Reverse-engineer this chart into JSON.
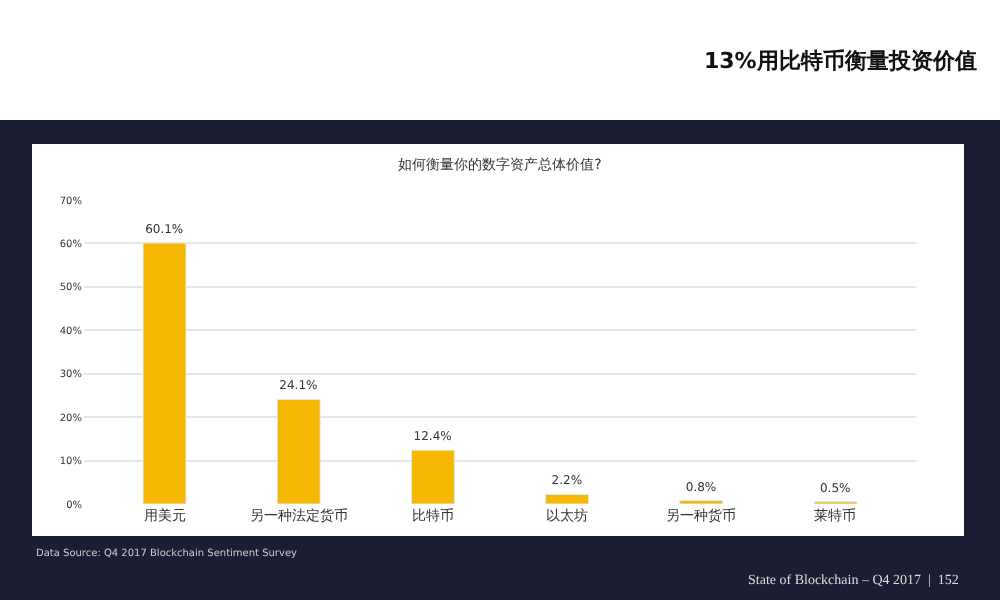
{
  "chart_data": {
    "type": "bar",
    "title": "如何衡量你的数字资产总体价值?",
    "categories": [
      "用美元",
      "另一种法定货币",
      "比特币",
      "以太坊",
      "另一种货币",
      "莱特币"
    ],
    "values": [
      60.1,
      24.1,
      12.4,
      2.2,
      0.8,
      0.5
    ],
    "value_labels": [
      "60.1%",
      "24.1%",
      "12.4%",
      "2.2%",
      "0.8%",
      "0.5%"
    ],
    "color": "#f5b700",
    "ylim": [
      0,
      70
    ],
    "yticks": [
      {
        "value": 0,
        "label": "0%"
      },
      {
        "value": 10,
        "label": "10%"
      },
      {
        "value": 20,
        "label": "20%"
      },
      {
        "value": 30,
        "label": "30%"
      },
      {
        "value": 40,
        "label": "40%"
      },
      {
        "value": 50,
        "label": "50%"
      },
      {
        "value": 60,
        "label": "60%"
      },
      {
        "value": 70,
        "label": "70%"
      }
    ],
    "grid": "y",
    "annotations": [
      "13%用比特币衡量投资价值",
      "Data Source: Q4 2017 Blockchain Sentiment Survey",
      "State of Blockchain – Q4 2017  |  152"
    ]
  }
}
